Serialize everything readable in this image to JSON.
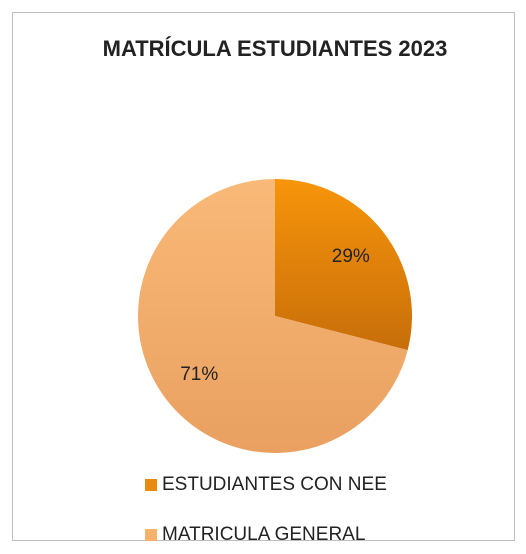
{
  "chart_data": {
    "type": "pie",
    "title": "MATRÍCULA ESTUDIANTES 2023",
    "categories": [
      "ESTUDIANTES CON NEE",
      "MATRICULA GENERAL"
    ],
    "values": [
      29,
      71
    ],
    "value_labels": [
      "29%",
      "71%"
    ],
    "colors": [
      "#e88a10",
      "#f6b26b"
    ],
    "legend": "bottom"
  }
}
